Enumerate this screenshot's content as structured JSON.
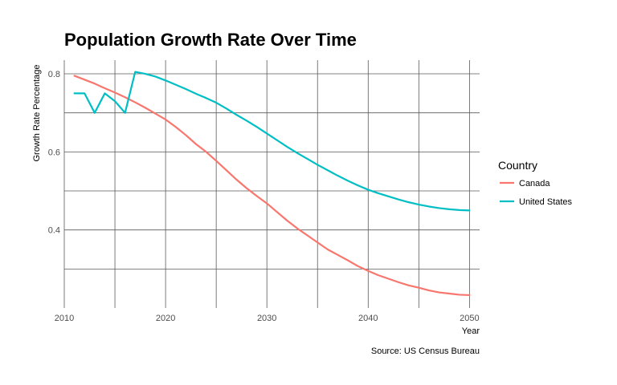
{
  "chart_data": {
    "type": "line",
    "title": "Population Growth Rate Over Time",
    "xlabel": "Year",
    "ylabel": "Growth Rate Percentage",
    "caption": "Source: US Census Bureau",
    "legend_title": "Country",
    "legend_position": "right",
    "grid": true,
    "xlim": [
      2010,
      2051
    ],
    "ylim": [
      0.2,
      0.835
    ],
    "x_ticks": [
      2010,
      2020,
      2030,
      2040,
      2050
    ],
    "y_ticks": [
      0.4,
      0.6,
      0.8
    ],
    "x": [
      2011,
      2012,
      2013,
      2014,
      2015,
      2016,
      2017,
      2018,
      2019,
      2020,
      2021,
      2022,
      2023,
      2024,
      2025,
      2026,
      2027,
      2028,
      2029,
      2030,
      2031,
      2032,
      2033,
      2034,
      2035,
      2036,
      2037,
      2038,
      2039,
      2040,
      2041,
      2042,
      2043,
      2044,
      2045,
      2046,
      2047,
      2048,
      2049,
      2050
    ],
    "series": [
      {
        "name": "Canada",
        "color": "#F8766D",
        "values": [
          0.795,
          0.785,
          0.775,
          0.763,
          0.752,
          0.74,
          0.727,
          0.713,
          0.698,
          0.683,
          0.664,
          0.643,
          0.62,
          0.6,
          0.577,
          0.553,
          0.529,
          0.507,
          0.487,
          0.468,
          0.446,
          0.424,
          0.404,
          0.386,
          0.368,
          0.35,
          0.336,
          0.322,
          0.307,
          0.295,
          0.284,
          0.275,
          0.266,
          0.258,
          0.252,
          0.245,
          0.24,
          0.237,
          0.234,
          0.233
        ]
      },
      {
        "name": "United States",
        "color": "#00BFC4",
        "values": [
          0.75,
          0.75,
          0.7,
          0.75,
          0.73,
          0.7,
          0.805,
          0.8,
          0.793,
          0.783,
          0.772,
          0.761,
          0.749,
          0.738,
          0.726,
          0.711,
          0.695,
          0.68,
          0.664,
          0.647,
          0.63,
          0.613,
          0.597,
          0.582,
          0.567,
          0.553,
          0.539,
          0.526,
          0.514,
          0.503,
          0.494,
          0.486,
          0.478,
          0.471,
          0.465,
          0.46,
          0.456,
          0.453,
          0.451,
          0.45
        ]
      }
    ]
  }
}
